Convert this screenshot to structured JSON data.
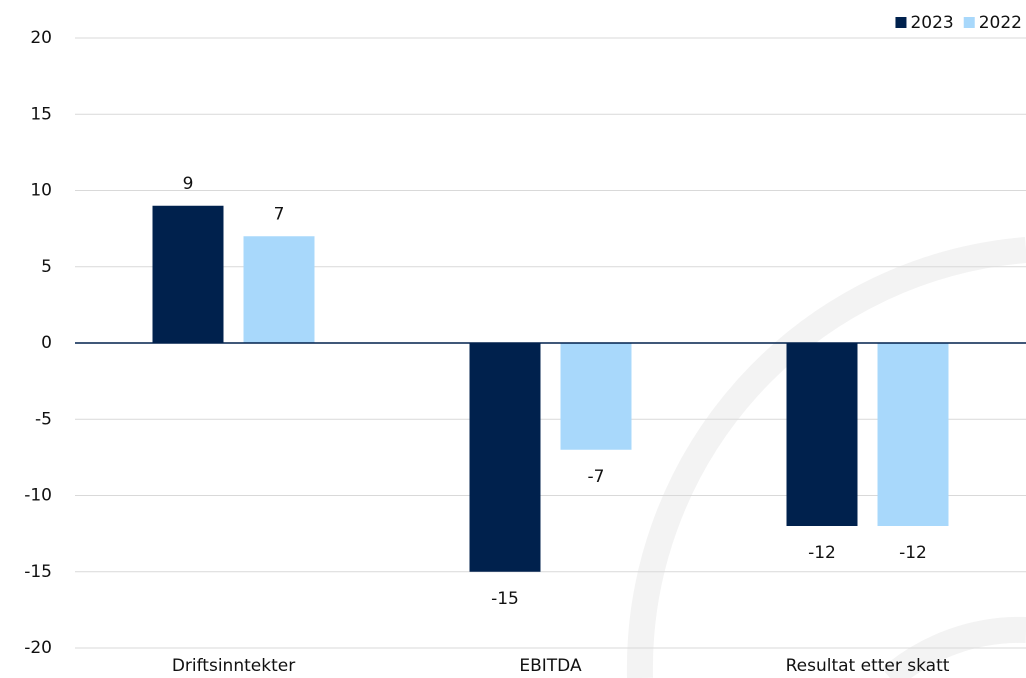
{
  "chart_data": {
    "type": "bar",
    "categories": [
      "Driftsinntekter",
      "EBITDA",
      "Resultat etter skatt"
    ],
    "series": [
      {
        "name": "2023",
        "color": "#00214d",
        "values": [
          9,
          -15,
          -12
        ]
      },
      {
        "name": "2022",
        "color": "#a8d8fb",
        "values": [
          7,
          -7,
          -12
        ]
      }
    ],
    "ylim": [
      -20,
      20
    ],
    "yticks": [
      -20,
      -15,
      -10,
      -5,
      0,
      5,
      10,
      15,
      20
    ],
    "grid": true,
    "legend": "top-right"
  }
}
